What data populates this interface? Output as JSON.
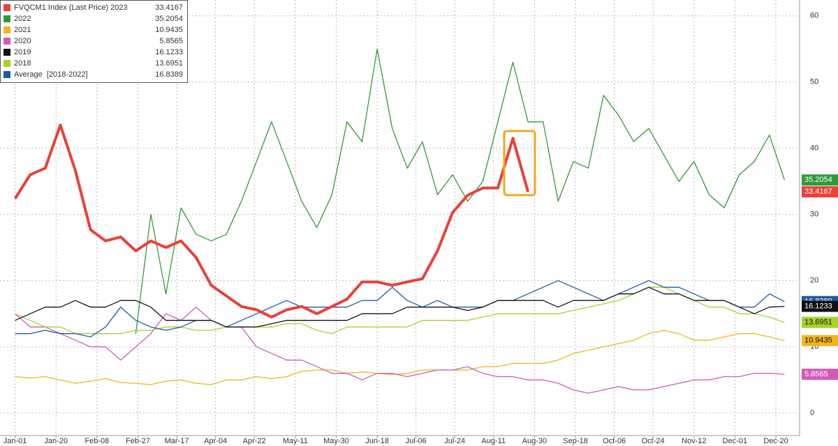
{
  "chart_data": {
    "type": "line",
    "x": [
      0,
      7,
      14,
      21,
      28,
      35,
      42,
      49,
      56,
      63,
      70,
      77,
      84,
      91,
      98,
      105,
      112,
      119,
      126,
      133,
      140,
      147,
      154,
      161,
      168,
      175,
      182,
      189,
      196,
      203,
      210,
      217,
      224,
      231,
      238,
      245,
      252,
      259,
      266,
      273,
      280,
      287,
      294,
      301,
      308,
      315,
      322,
      329,
      336,
      343,
      350,
      357
    ],
    "xlim": [
      -7,
      364
    ],
    "xticks": [
      {
        "value": 0,
        "label": "Jan-01"
      },
      {
        "value": 19,
        "label": "Jan-20"
      },
      {
        "value": 38,
        "label": "Feb-08"
      },
      {
        "value": 57,
        "label": "Feb-27"
      },
      {
        "value": 75,
        "label": "Mar-17"
      },
      {
        "value": 93,
        "label": "Apr-04"
      },
      {
        "value": 111,
        "label": "Apr-22"
      },
      {
        "value": 130,
        "label": "May-11"
      },
      {
        "value": 149,
        "label": "May-30"
      },
      {
        "value": 168,
        "label": "Jun-18"
      },
      {
        "value": 186,
        "label": "Jul-06"
      },
      {
        "value": 204,
        "label": "Jul-24"
      },
      {
        "value": 222,
        "label": "Aug-11"
      },
      {
        "value": 241,
        "label": "Aug-30"
      },
      {
        "value": 260,
        "label": "Sep-18"
      },
      {
        "value": 278,
        "label": "Oct-06"
      },
      {
        "value": 296,
        "label": "Oct-24"
      },
      {
        "value": 315,
        "label": "Nov-12"
      },
      {
        "value": 334,
        "label": "Dec-01"
      },
      {
        "value": 353,
        "label": "Dec-20"
      }
    ],
    "ylim": [
      -3.4,
      62.4
    ],
    "yticks": [
      0,
      10,
      20,
      30,
      40,
      50,
      60
    ],
    "grid": true,
    "legend": "upper left",
    "series": [
      {
        "name": "FVQCM1 Index (Last Price) 2023",
        "color": "#e8413a",
        "last": 33.4167,
        "values": [
          32.4,
          36,
          37,
          43.5,
          36.6,
          27.7,
          26,
          26.6,
          24.5,
          26,
          25,
          26,
          23.5,
          19.3,
          17.7,
          16.1,
          15.6,
          14.5,
          15.6,
          16.1,
          15,
          16.1,
          17.2,
          19.8,
          19.8,
          19.3,
          19.8,
          20.3,
          24.5,
          30.3,
          32.9,
          34,
          34,
          41.5,
          33.4167,
          null,
          null,
          null,
          null,
          null,
          null,
          null,
          null,
          null,
          null,
          null,
          null,
          null,
          null,
          null,
          null,
          null
        ]
      },
      {
        "name": "2022",
        "color": "#2e9a3a",
        "last": 35.2054,
        "values": [
          null,
          null,
          null,
          null,
          null,
          null,
          null,
          null,
          12,
          30,
          18,
          31,
          27,
          26,
          27,
          32,
          38,
          44,
          38,
          32,
          28,
          33,
          44,
          41,
          55,
          43,
          37,
          41,
          33,
          36,
          32,
          35,
          44,
          53,
          44,
          44,
          32,
          38,
          37,
          48,
          45,
          41,
          43,
          39,
          35,
          38,
          33,
          31,
          36,
          38,
          42,
          35.2054
        ]
      },
      {
        "name": "2021",
        "color": "#f2b51c",
        "last": 10.9435,
        "values": [
          5.5,
          5.3,
          5.5,
          5.0,
          4.5,
          4.8,
          5.2,
          4.6,
          4.5,
          4.3,
          4.8,
          5.0,
          4.5,
          4.3,
          5.0,
          5.0,
          5.5,
          5.2,
          5.5,
          6.3,
          6.5,
          6.5,
          6.0,
          6.2,
          6.0,
          5.8,
          6.0,
          6.5,
          6.5,
          6.5,
          6.5,
          7.0,
          7.0,
          7.5,
          7.5,
          7.5,
          8.0,
          9.0,
          9.5,
          10.0,
          10.5,
          11.0,
          12.0,
          12.5,
          12.0,
          11.0,
          11.0,
          11.5,
          12.0,
          12.0,
          11.5,
          10.9435
        ]
      },
      {
        "name": "2020",
        "color": "#d35bb8",
        "last": 5.8565,
        "values": [
          15,
          13,
          13,
          12,
          11,
          10,
          10,
          8,
          10,
          12,
          15,
          14,
          16,
          14,
          13,
          13,
          10,
          9,
          8,
          8,
          7,
          6,
          6,
          5,
          6,
          6,
          5.5,
          6,
          6.5,
          6.5,
          7,
          6,
          5.5,
          5.5,
          5,
          5,
          4.5,
          3.5,
          3,
          3.5,
          4,
          3.5,
          3.5,
          4,
          4.5,
          5,
          5,
          5.5,
          5.5,
          6,
          6,
          5.8565
        ]
      },
      {
        "name": "2018",
        "color": "#a8d12a",
        "last": 13.6951,
        "values": [
          15,
          14,
          13,
          13,
          12,
          12,
          12,
          12,
          12.5,
          12.5,
          13,
          13,
          12.5,
          12.5,
          13,
          13,
          13,
          13,
          13.5,
          13.5,
          12.5,
          12,
          13,
          13,
          13,
          13,
          13,
          14,
          14,
          14,
          14,
          14.5,
          15,
          15,
          15,
          15,
          15,
          15.5,
          16,
          16.5,
          17,
          18,
          19,
          19,
          18,
          17,
          16,
          16,
          15,
          15,
          14.5,
          13.6951
        ]
      },
      {
        "name": "Average  [2018-2022]",
        "color": "#1f5aa6",
        "last": 16.8389,
        "values": [
          12,
          12,
          12.5,
          12,
          12,
          11.5,
          13,
          16,
          14,
          13,
          12.5,
          13,
          14,
          14,
          13,
          14,
          15,
          16,
          17,
          16,
          16,
          16,
          16,
          17,
          17,
          19,
          17,
          16,
          17,
          16,
          16,
          16,
          17,
          17,
          18,
          19,
          20,
          19,
          18,
          17,
          18,
          19,
          20,
          19,
          19,
          18,
          17,
          17,
          16,
          16,
          18,
          16.8389
        ]
      },
      {
        "name": "2019",
        "color": "#111111",
        "last": 16.1233,
        "values": [
          14,
          15,
          16,
          16,
          17,
          16,
          16,
          17,
          17,
          16,
          14,
          14,
          14,
          14,
          13,
          13,
          13,
          13.5,
          14,
          14,
          14,
          14,
          14,
          15,
          15,
          15,
          16,
          16,
          16,
          16,
          15.5,
          16,
          17,
          17,
          17,
          17,
          16,
          17,
          17,
          17,
          18,
          18,
          19,
          18,
          18,
          17,
          17,
          17,
          16,
          15,
          16,
          16.1233
        ]
      }
    ]
  }
}
